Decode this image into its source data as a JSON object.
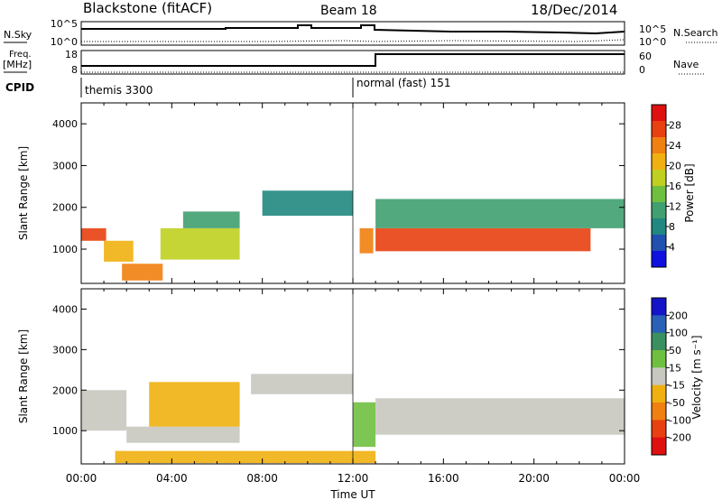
{
  "header": {
    "station": "Blackstone (fitACF)",
    "beam": "Beam 18",
    "date": "18/Dec/2014"
  },
  "left_labels": {
    "nsky": "N.Sky",
    "freq_line1": "Freq.",
    "freq_line2": "[MHz]",
    "cpid": "CPID"
  },
  "right_labels": {
    "nsearch": "N.Search",
    "nave": "Nave"
  },
  "noise_panel": {
    "left_ticks": [
      "10^5",
      "10^0"
    ],
    "right_ticks": [
      "10^5",
      "10^0"
    ]
  },
  "freq_panel": {
    "left_ticks": [
      "18",
      "8"
    ],
    "right_ticks": [
      "60",
      "0"
    ]
  },
  "cpid_panel": {
    "modes": [
      {
        "label": "themis 3300",
        "start_hour": 0
      },
      {
        "label": "normal (fast) 151",
        "start_hour": 12
      }
    ]
  },
  "x_axis": {
    "label": "Time UT",
    "ticks": [
      "00:00",
      "04:00",
      "08:00",
      "12:00",
      "16:00",
      "20:00",
      "00:00"
    ]
  },
  "chart_data": [
    {
      "type": "heatmap",
      "title": "",
      "ylabel": "Slant Range [km]",
      "xlabel": "Time UT",
      "ylim": [
        180,
        4500
      ],
      "yticks": [
        "1000",
        "2000",
        "3000",
        "4000"
      ],
      "xlim_hours": [
        0,
        24
      ],
      "colorbar": {
        "label": "Power [dB]",
        "ticks": [
          "4",
          "8",
          "12",
          "16",
          "20",
          "24",
          "28"
        ],
        "range": [
          0,
          32
        ],
        "colors": [
          "#1010e0",
          "#2050b0",
          "#208880",
          "#40a070",
          "#70c040",
          "#c0d020",
          "#f0b010",
          "#f08010",
          "#e84010",
          "#e01010"
        ]
      },
      "bands": [
        {
          "start_hour": 0.0,
          "end_hour": 1.1,
          "range_km": [
            1200,
            1500
          ],
          "value_db": 28
        },
        {
          "start_hour": 1.0,
          "end_hour": 2.3,
          "range_km": [
            700,
            1200
          ],
          "value_db": 20
        },
        {
          "start_hour": 1.8,
          "end_hour": 3.6,
          "range_km": [
            250,
            650
          ],
          "value_db": 24
        },
        {
          "start_hour": 3.5,
          "end_hour": 7.0,
          "range_km": [
            750,
            1500
          ],
          "value_db": 16
        },
        {
          "start_hour": 4.5,
          "end_hour": 7.0,
          "range_km": [
            1500,
            1900
          ],
          "value_db": 12
        },
        {
          "start_hour": 8.0,
          "end_hour": 12.0,
          "range_km": [
            1800,
            2400
          ],
          "value_db": 8
        },
        {
          "start_hour": 12.3,
          "end_hour": 12.9,
          "range_km": [
            900,
            1500
          ],
          "value_db": 24
        },
        {
          "start_hour": 13.0,
          "end_hour": 22.5,
          "range_km": [
            950,
            1500
          ],
          "value_db": 28
        },
        {
          "start_hour": 13.0,
          "end_hour": 24.0,
          "range_km": [
            1500,
            2200
          ],
          "value_db": 12
        }
      ]
    },
    {
      "type": "heatmap",
      "title": "",
      "ylabel": "Slant Range [km]",
      "xlabel": "Time UT",
      "ylim": [
        180,
        4500
      ],
      "yticks": [
        "1000",
        "2000",
        "3000",
        "4000"
      ],
      "xlim_hours": [
        0,
        24
      ],
      "colorbar": {
        "label": "Velocity [m s⁻¹]",
        "ticks": [
          "200",
          "100",
          "50",
          "15",
          "-15",
          "-50",
          "-100",
          "-200"
        ],
        "range": [
          -250,
          250
        ],
        "colors": [
          "#1414c8",
          "#2a60b8",
          "#3a9060",
          "#70c040",
          "#c8c8c0",
          "#f0b010",
          "#f08010",
          "#e84010",
          "#e01010"
        ]
      },
      "bands": [
        {
          "start_hour": 0.0,
          "end_hour": 2.0,
          "range_km": [
            1000,
            2000
          ],
          "value_ms": 0
        },
        {
          "start_hour": 2.0,
          "end_hour": 7.0,
          "range_km": [
            700,
            1100
          ],
          "value_ms": 0
        },
        {
          "start_hour": 3.0,
          "end_hour": 7.0,
          "range_km": [
            1100,
            2200
          ],
          "value_ms": -50
        },
        {
          "start_hour": 1.5,
          "end_hour": 13.0,
          "range_km": [
            200,
            500
          ],
          "value_ms": -50
        },
        {
          "start_hour": 7.5,
          "end_hour": 12.0,
          "range_km": [
            1900,
            2400
          ],
          "value_ms": 0
        },
        {
          "start_hour": 12.0,
          "end_hour": 13.0,
          "range_km": [
            600,
            1700
          ],
          "value_ms": 50
        },
        {
          "start_hour": 13.0,
          "end_hour": 24.0,
          "range_km": [
            900,
            1800
          ],
          "value_ms": 0
        }
      ]
    }
  ]
}
